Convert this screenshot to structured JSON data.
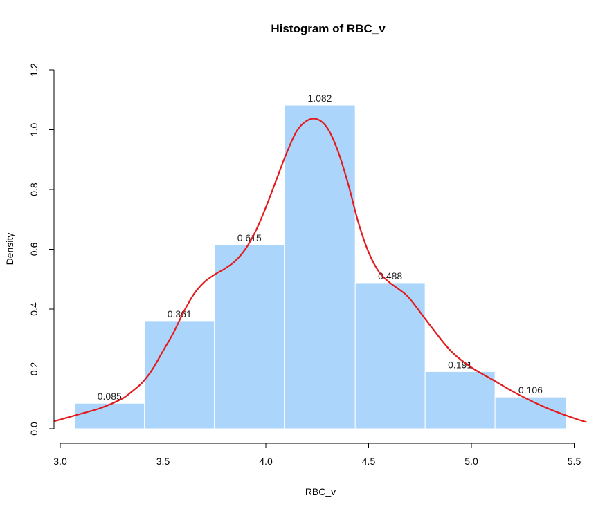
{
  "chart_data": {
    "type": "bar",
    "title": "Histogram of RBC_v",
    "xlabel": "RBC_v",
    "ylabel": "Density",
    "xlim": [
      2.97,
      5.56
    ],
    "ylim": [
      0,
      1.2
    ],
    "x_ticks": [
      "3.0",
      "3.5",
      "4.0",
      "4.5",
      "5.0",
      "5.5"
    ],
    "y_ticks": [
      "0.0",
      "0.2",
      "0.4",
      "0.6",
      "0.8",
      "1.0",
      "1.2"
    ],
    "bins": [
      {
        "x0": 3.07,
        "x1": 3.41,
        "value": 0.085,
        "label": "0.085"
      },
      {
        "x0": 3.41,
        "x1": 3.75,
        "value": 0.361,
        "label": "0.361"
      },
      {
        "x0": 3.75,
        "x1": 4.09,
        "value": 0.615,
        "label": "0.615"
      },
      {
        "x0": 4.09,
        "x1": 4.435,
        "value": 1.082,
        "label": "1.082"
      },
      {
        "x0": 4.435,
        "x1": 4.775,
        "value": 0.488,
        "label": "0.488"
      },
      {
        "x0": 4.775,
        "x1": 5.115,
        "value": 0.191,
        "label": "0.191"
      },
      {
        "x0": 5.115,
        "x1": 5.46,
        "value": 0.106,
        "label": "0.106"
      }
    ],
    "density_curve": {
      "x": [
        2.97,
        3.1,
        3.2,
        3.3,
        3.35,
        3.4,
        3.45,
        3.5,
        3.55,
        3.6,
        3.65,
        3.7,
        3.75,
        3.8,
        3.85,
        3.9,
        3.95,
        4.0,
        4.05,
        4.1,
        4.15,
        4.2,
        4.25,
        4.3,
        4.35,
        4.4,
        4.45,
        4.5,
        4.55,
        4.6,
        4.65,
        4.7,
        4.8,
        4.9,
        5.0,
        5.1,
        5.2,
        5.3,
        5.4,
        5.5,
        5.56
      ],
      "y": [
        0.025,
        0.05,
        0.07,
        0.1,
        0.125,
        0.155,
        0.2,
        0.26,
        0.32,
        0.39,
        0.45,
        0.49,
        0.515,
        0.535,
        0.56,
        0.6,
        0.66,
        0.74,
        0.83,
        0.92,
        0.995,
        1.03,
        1.035,
        1.005,
        0.93,
        0.82,
        0.69,
        0.59,
        0.525,
        0.49,
        0.465,
        0.435,
        0.345,
        0.26,
        0.205,
        0.165,
        0.125,
        0.09,
        0.06,
        0.035,
        0.022
      ],
      "color": "#e41a1c"
    },
    "bar_color": "#abd5fb",
    "bar_border_color": "#ffffff",
    "grid": false,
    "legend": "none"
  }
}
